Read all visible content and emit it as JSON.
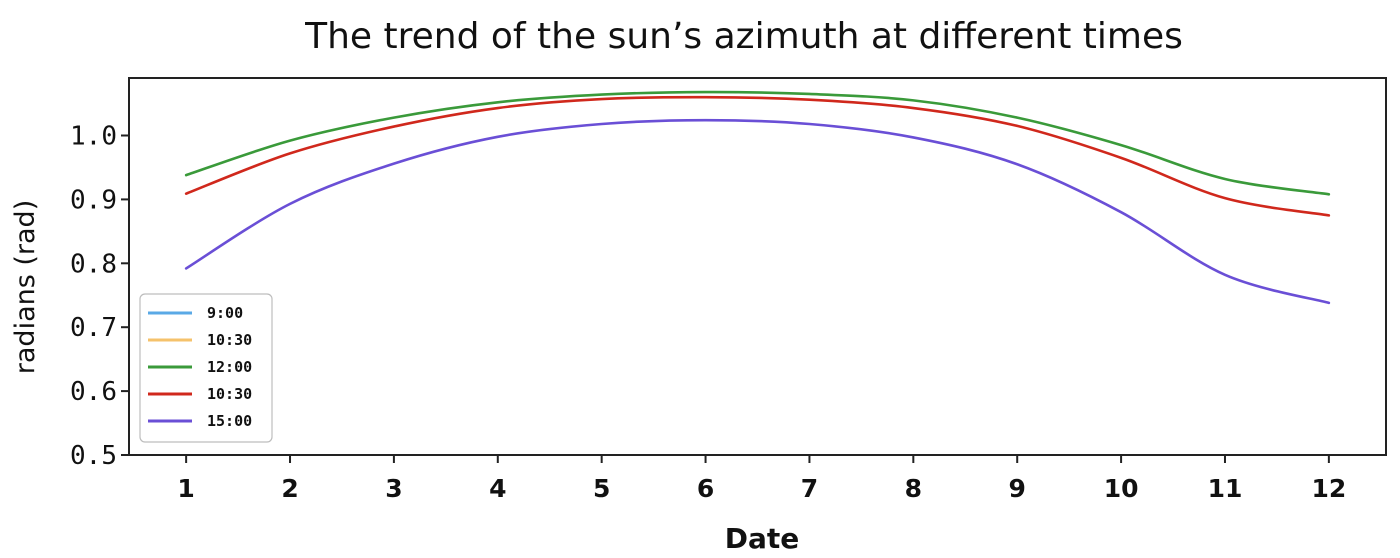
{
  "chart_data": {
    "type": "line",
    "title": "The trend of the sun’s azimuth at different times",
    "xlabel": "Date",
    "ylabel": "radians (rad)",
    "x": [
      1,
      2,
      3,
      4,
      5,
      6,
      7,
      8,
      9,
      10,
      11,
      12
    ],
    "xlim": [
      0.45,
      12.55
    ],
    "ylim": [
      0.5,
      1.09
    ],
    "yticks": [
      "0.5",
      "0.6",
      "0.7",
      "0.8",
      "0.9",
      "1.0"
    ],
    "xticks": [
      "1",
      "2",
      "3",
      "4",
      "5",
      "6",
      "7",
      "8",
      "9",
      "10",
      "11",
      "12"
    ],
    "grid": false,
    "legend_position": "lower-left",
    "series": [
      {
        "name": "9:00",
        "color": "#5aa9e6",
        "values": null
      },
      {
        "name": "10:30",
        "color": "#f5c26b",
        "values": null
      },
      {
        "name": "12:00",
        "color": "#3a9a3a",
        "values": [
          0.938,
          0.992,
          1.028,
          1.052,
          1.064,
          1.068,
          1.065,
          1.055,
          1.028,
          0.985,
          0.932,
          0.908
        ]
      },
      {
        "name": "10:30",
        "color": "#d0281c",
        "values": [
          0.909,
          0.972,
          1.014,
          1.043,
          1.057,
          1.06,
          1.056,
          1.043,
          1.015,
          0.965,
          0.902,
          0.875
        ]
      },
      {
        "name": "15:00",
        "color": "#6a4fd6",
        "values": [
          0.792,
          0.893,
          0.956,
          0.998,
          1.018,
          1.024,
          1.018,
          0.997,
          0.955,
          0.88,
          0.782,
          0.738
        ]
      }
    ]
  }
}
